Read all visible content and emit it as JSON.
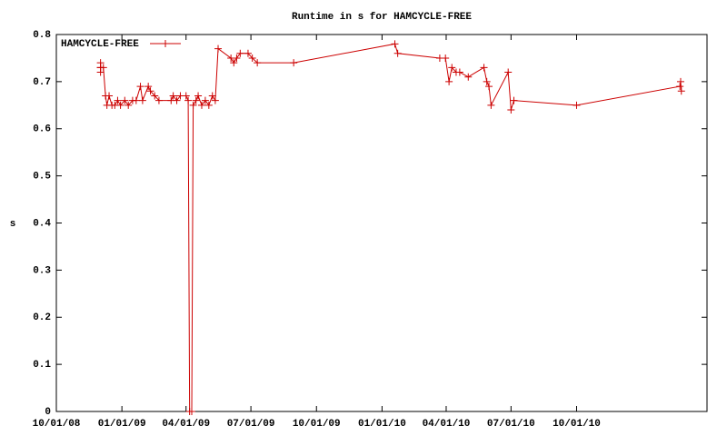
{
  "chart_data": {
    "type": "line",
    "title": "Runtime in s for HAMCYCLE-FREE",
    "y_label": "s",
    "x": [
      "2008-12-02",
      "2008-12-02",
      "2008-12-02",
      "2008-12-02",
      "2008-12-06",
      "2008-12-09",
      "2008-12-11",
      "2008-12-14",
      "2008-12-18",
      "2008-12-22",
      "2008-12-26",
      "2008-12-30",
      "2009-01-05",
      "2009-01-10",
      "2009-01-16",
      "2009-01-21",
      "2009-01-27",
      "2009-01-30",
      "2009-02-07",
      "2009-02-10",
      "2009-02-16",
      "2009-02-22",
      "2009-03-11",
      "2009-03-14",
      "2009-03-19",
      "2009-03-24",
      "2009-04-01",
      "2009-04-04",
      "2009-04-06",
      "2009-04-09",
      "2009-04-11",
      "2009-04-15",
      "2009-04-18",
      "2009-04-23",
      "2009-04-28",
      "2009-05-03",
      "2009-05-08",
      "2009-05-12",
      "2009-05-16",
      "2009-06-03",
      "2009-06-07",
      "2009-06-11",
      "2009-06-16",
      "2009-06-27",
      "2009-07-03",
      "2009-07-10",
      "2009-08-30",
      "2010-01-19",
      "2010-01-23",
      "2010-03-23",
      "2010-03-31",
      "2010-04-05",
      "2010-04-09",
      "2010-04-15",
      "2010-04-20",
      "2010-05-02",
      "2010-05-24",
      "2010-05-28",
      "2010-05-31",
      "2010-06-03",
      "2010-06-27",
      "2010-07-01",
      "2010-07-05",
      "2010-10-01",
      "2011-02-23",
      "2011-02-24",
      "2011-02-25"
    ],
    "series": [
      {
        "name": "HAMCYCLE-FREE",
        "color": "#cc0000",
        "values": [
          0.74,
          0.73,
          0.72,
          0.73,
          0.73,
          0.67,
          0.65,
          0.67,
          0.65,
          0.65,
          0.66,
          0.65,
          0.66,
          0.65,
          0.66,
          0.66,
          0.69,
          0.66,
          0.69,
          0.68,
          0.67,
          0.66,
          0.66,
          0.67,
          0.66,
          0.67,
          0.67,
          0.66,
          0,
          0,
          0.65,
          0.66,
          0.67,
          0.65,
          0.66,
          0.65,
          0.67,
          0.66,
          0.77,
          0.75,
          0.74,
          0.75,
          0.76,
          0.76,
          0.75,
          0.74,
          0.74,
          0.78,
          0.76,
          0.75,
          0.75,
          0.7,
          0.73,
          0.72,
          0.72,
          0.71,
          0.73,
          0.7,
          0.69,
          0.65,
          0.72,
          0.64,
          0.66,
          0.65,
          0.69,
          0.7,
          0.68
        ]
      }
    ],
    "xlim": [
      "2008-10-01",
      "2011-04-02"
    ],
    "xticks": [
      {
        "value": "2008-10-01",
        "label": "10/01/08"
      },
      {
        "value": "2009-01-01",
        "label": "01/01/09"
      },
      {
        "value": "2009-04-01",
        "label": "04/01/09"
      },
      {
        "value": "2009-07-01",
        "label": "07/01/09"
      },
      {
        "value": "2009-10-01",
        "label": "10/01/09"
      },
      {
        "value": "2010-01-01",
        "label": "01/01/10"
      },
      {
        "value": "2010-04-01",
        "label": "04/01/10"
      },
      {
        "value": "2010-07-01",
        "label": "07/01/10"
      },
      {
        "value": "2010-10-01",
        "label": "10/01/10"
      }
    ],
    "ylim": [
      0,
      0.8
    ],
    "yticks": [
      0,
      0.1,
      0.2,
      0.3,
      0.4,
      0.5,
      0.6,
      0.7,
      0.8
    ],
    "legend": "top-left",
    "grid": false
  }
}
